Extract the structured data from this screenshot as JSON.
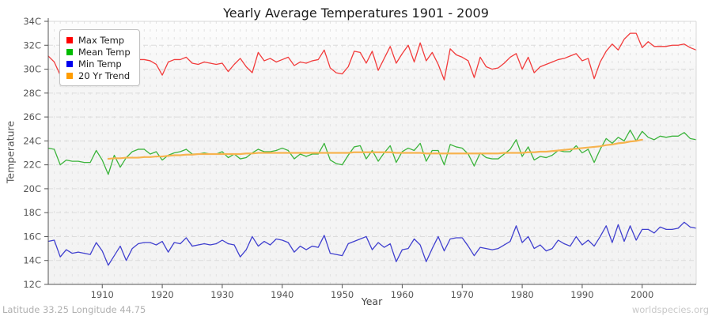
{
  "footer": {
    "coordinates": "Latitude 33.25 Longitude 44.75",
    "watermark": "worldspecies.org"
  },
  "chart_data": {
    "type": "line",
    "title": "Yearly Average Temperatures 1901 - 2009",
    "xlabel": "Year",
    "ylabel": "Temperature",
    "xlim": [
      1901,
      2009
    ],
    "ylim": [
      12,
      34
    ],
    "grid": "dotted yearly vertical, dashed horizontal every 2C",
    "legend_position": "top-left",
    "plot_bg": "#f3f3f3",
    "y_ticks": [
      {
        "value": 34,
        "label": "34C"
      },
      {
        "value": 32,
        "label": "32C"
      },
      {
        "value": 30,
        "label": "30C"
      },
      {
        "value": 28,
        "label": "28C"
      },
      {
        "value": 26,
        "label": "26C"
      },
      {
        "value": 24,
        "label": "24C"
      },
      {
        "value": 22,
        "label": "22C"
      },
      {
        "value": 20,
        "label": "20C"
      },
      {
        "value": 18,
        "label": "18C"
      },
      {
        "value": 16,
        "label": "16C"
      },
      {
        "value": 14,
        "label": "14C"
      },
      {
        "value": 12,
        "label": "12C"
      }
    ],
    "x_ticks": [
      {
        "value": 1910,
        "label": "1910"
      },
      {
        "value": 1920,
        "label": "1920"
      },
      {
        "value": 1930,
        "label": "1930"
      },
      {
        "value": 1940,
        "label": "1940"
      },
      {
        "value": 1950,
        "label": "1950"
      },
      {
        "value": 1960,
        "label": "1960"
      },
      {
        "value": 1970,
        "label": "1970"
      },
      {
        "value": 1980,
        "label": "1980"
      },
      {
        "value": 1990,
        "label": "1990"
      },
      {
        "value": 2000,
        "label": "2000"
      }
    ],
    "series": [
      {
        "name": "Max Temp",
        "color": "#f23b3b",
        "legend_color": "#ff0000",
        "width": 1.3,
        "start_year": 1901,
        "values": [
          31.1,
          30.6,
          29.5,
          30.3,
          29.9,
          30.2,
          29.8,
          30.0,
          30.7,
          29.9,
          28.7,
          29.9,
          30.3,
          30.6,
          30.7,
          30.8,
          30.8,
          30.7,
          30.4,
          29.5,
          30.6,
          30.8,
          30.8,
          31.0,
          30.5,
          30.4,
          30.6,
          30.5,
          30.4,
          30.5,
          29.8,
          30.4,
          30.9,
          30.2,
          29.7,
          31.4,
          30.7,
          30.9,
          30.6,
          30.8,
          31.0,
          30.3,
          30.6,
          30.5,
          30.7,
          30.8,
          31.6,
          30.1,
          29.7,
          29.6,
          30.2,
          31.5,
          31.4,
          30.5,
          31.5,
          29.9,
          30.9,
          31.9,
          30.5,
          31.3,
          32.0,
          30.6,
          32.2,
          30.7,
          31.4,
          30.4,
          29.1,
          31.7,
          31.2,
          31.0,
          30.7,
          29.3,
          31.0,
          30.2,
          30.0,
          30.1,
          30.5,
          31.0,
          31.3,
          30.0,
          31.0,
          29.7,
          30.2,
          30.4,
          30.6,
          30.8,
          30.9,
          31.1,
          31.3,
          30.7,
          30.9,
          29.2,
          30.6,
          31.5,
          32.1,
          31.6,
          32.5,
          33.0,
          33.0,
          31.8,
          32.3,
          31.9,
          31.9,
          31.9,
          32.0,
          32.0,
          32.1,
          31.8,
          31.6
        ]
      },
      {
        "name": "Mean Temp",
        "color": "#3cb43c",
        "legend_color": "#00bb00",
        "width": 1.3,
        "start_year": 1901,
        "values": [
          23.4,
          23.3,
          22.0,
          22.4,
          22.3,
          22.3,
          22.2,
          22.2,
          23.2,
          22.4,
          21.2,
          22.8,
          21.8,
          22.6,
          23.1,
          23.3,
          23.3,
          22.9,
          23.1,
          22.4,
          22.8,
          23.0,
          23.1,
          23.3,
          22.9,
          22.9,
          23.0,
          22.9,
          22.9,
          23.1,
          22.6,
          22.9,
          22.5,
          22.6,
          23.0,
          23.3,
          23.1,
          23.1,
          23.2,
          23.4,
          23.2,
          22.5,
          22.9,
          22.7,
          22.9,
          22.9,
          23.8,
          22.4,
          22.1,
          22.0,
          22.8,
          23.5,
          23.6,
          22.5,
          23.2,
          22.3,
          23.0,
          23.6,
          22.2,
          23.1,
          23.4,
          23.2,
          23.8,
          22.3,
          23.2,
          23.2,
          22.0,
          23.7,
          23.5,
          23.4,
          22.9,
          21.9,
          23.0,
          22.6,
          22.5,
          22.5,
          22.9,
          23.3,
          24.1,
          22.7,
          23.5,
          22.4,
          22.7,
          22.6,
          22.8,
          23.2,
          23.1,
          23.1,
          23.6,
          23.0,
          23.3,
          22.2,
          23.3,
          24.2,
          23.8,
          24.3,
          24.0,
          24.9,
          24.0,
          24.8,
          24.3,
          24.1,
          24.4,
          24.3,
          24.4,
          24.4,
          24.7,
          24.2,
          24.1
        ]
      },
      {
        "name": "Min Temp",
        "color": "#4040cf",
        "legend_color": "#0000ee",
        "width": 1.3,
        "start_year": 1901,
        "values": [
          15.6,
          15.7,
          14.3,
          14.9,
          14.6,
          14.7,
          14.6,
          14.5,
          15.5,
          14.8,
          13.6,
          14.4,
          15.2,
          14.0,
          15.0,
          15.4,
          15.5,
          15.5,
          15.3,
          15.6,
          14.7,
          15.5,
          15.4,
          15.9,
          15.2,
          15.3,
          15.4,
          15.3,
          15.4,
          15.7,
          15.4,
          15.3,
          14.3,
          14.9,
          16.0,
          15.2,
          15.6,
          15.3,
          15.8,
          15.7,
          15.5,
          14.7,
          15.2,
          14.9,
          15.2,
          15.1,
          16.1,
          14.6,
          14.5,
          14.4,
          15.4,
          15.6,
          15.8,
          16.0,
          14.9,
          15.5,
          15.1,
          15.4,
          13.9,
          14.9,
          15.0,
          15.8,
          15.3,
          13.9,
          15.0,
          16.0,
          14.8,
          15.8,
          15.9,
          15.9,
          15.2,
          14.4,
          15.1,
          15.0,
          14.9,
          15.0,
          15.3,
          15.6,
          16.9,
          15.5,
          16.0,
          15.0,
          15.3,
          14.8,
          15.0,
          15.7,
          15.4,
          15.2,
          16.0,
          15.3,
          15.7,
          15.2,
          16.0,
          16.9,
          15.5,
          17.0,
          15.6,
          16.9,
          15.7,
          16.6,
          16.6,
          16.3,
          16.8,
          16.6,
          16.6,
          16.7,
          17.2,
          16.8,
          16.7
        ]
      },
      {
        "name": "20 Yr Trend",
        "color": "#f7b34f",
        "legend_color": "#ff9c00",
        "width": 2.2,
        "start_year": 1911,
        "values": [
          22.5,
          22.55,
          22.55,
          22.6,
          22.6,
          22.6,
          22.65,
          22.65,
          22.7,
          22.7,
          22.75,
          22.8,
          22.8,
          22.85,
          22.85,
          22.9,
          22.9,
          22.9,
          22.9,
          22.9,
          22.9,
          22.9,
          22.9,
          22.95,
          22.95,
          23.0,
          23.0,
          23.0,
          23.0,
          23.0,
          23.0,
          23.0,
          23.0,
          23.0,
          23.0,
          23.0,
          23.0,
          23.0,
          23.0,
          23.0,
          23.0,
          23.05,
          23.05,
          23.05,
          23.05,
          23.05,
          23.05,
          23.05,
          23.0,
          23.0,
          23.0,
          23.0,
          23.0,
          22.95,
          22.95,
          22.95,
          22.95,
          22.95,
          22.95,
          22.95,
          22.95,
          22.95,
          22.95,
          22.95,
          22.95,
          22.95,
          23.0,
          23.0,
          23.0,
          23.0,
          23.05,
          23.05,
          23.1,
          23.1,
          23.15,
          23.2,
          23.25,
          23.3,
          23.35,
          23.4,
          23.45,
          23.5,
          23.55,
          23.65,
          23.7,
          23.8,
          23.85,
          23.95,
          24.0,
          24.1
        ]
      }
    ]
  }
}
